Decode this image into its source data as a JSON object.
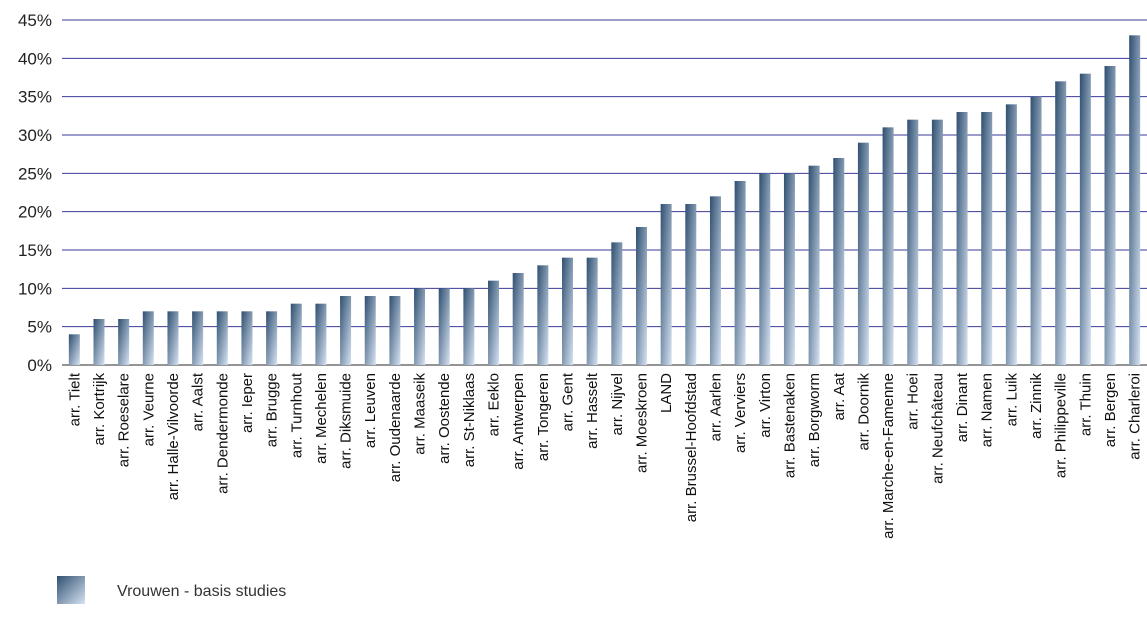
{
  "chart_data": {
    "type": "bar",
    "title": "",
    "xlabel": "",
    "ylabel": "",
    "ylim": [
      0,
      45
    ],
    "y_ticks": [
      "0%",
      "5%",
      "10%",
      "15%",
      "20%",
      "25%",
      "30%",
      "35%",
      "40%",
      "45%"
    ],
    "grid": true,
    "legend_position": "bottom-left",
    "categories": [
      "arr. Tielt",
      "arr. Kortrijk",
      "arr. Roeselare",
      "arr. Veurne",
      "arr. Halle-Vilvoorde",
      "arr. Aalst",
      "arr. Dendermonde",
      "arr. Ieper",
      "arr. Brugge",
      "arr. Turnhout",
      "arr. Mechelen",
      "arr. Diksmuide",
      "arr. Leuven",
      "arr. Oudenaarde",
      "arr. Maaseik",
      "arr. Oostende",
      "arr. St-Niklaas",
      "arr. Eeklo",
      "arr. Antwerpen",
      "arr. Tongeren",
      "arr. Gent",
      "arr. Hasselt",
      "arr. Nijvel",
      "arr. Moeskroen",
      "LAND",
      "arr. Brussel-Hoofdstad",
      "arr. Aarlen",
      "arr. Verviers",
      "arr. Virton",
      "arr. Bastenaken",
      "arr. Borgworm",
      "arr. Aat",
      "arr. Doornik",
      "arr. Marche-en-Famenne",
      "arr. Hoei",
      "arr. Neufchâteau",
      "arr. Dinant",
      "arr. Namen",
      "arr. Luik",
      "arr. Zinnik",
      "arr. Philippeville",
      "arr. Thuin",
      "arr. Bergen",
      "arr. Charleroi"
    ],
    "series": [
      {
        "name": "Vrouwen - basis studies",
        "values": [
          4,
          6,
          6,
          7,
          7,
          7,
          7,
          7,
          7,
          8,
          8,
          9,
          9,
          9,
          10,
          10,
          10,
          11,
          12,
          13,
          14,
          14,
          16,
          18,
          21,
          21,
          22,
          24,
          25,
          25,
          26,
          27,
          29,
          31,
          32,
          32,
          33,
          33,
          34,
          35,
          37,
          38,
          39,
          43
        ]
      }
    ]
  },
  "colors": {
    "gridline": "#3a3a9a",
    "bar_dark": "#2f4f70",
    "bar_light": "#d6e3f3"
  }
}
